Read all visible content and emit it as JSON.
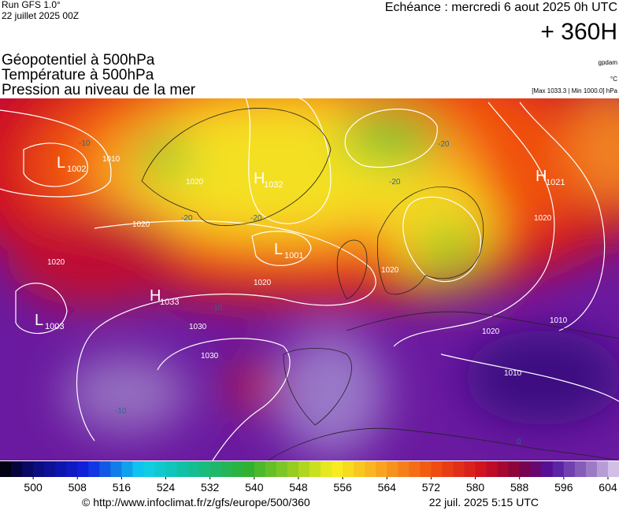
{
  "header": {
    "run": "Run GFS 1.0°",
    "run_date": "22 juillet 2025 00Z",
    "valid": "Echéance : mercredi 6 aout 2025 0h UTC",
    "lead": "+ 360H"
  },
  "layers": [
    "Géopotentiel à 500hPa",
    "Température à 500hPa",
    "Pression au niveau de la mer"
  ],
  "units": [
    "gpdam",
    "°C",
    "[Max 1033.3 | Min 1000.0] hPa"
  ],
  "pressure_centers": [
    {
      "letter": "L",
      "value": 1002
    },
    {
      "letter": "H",
      "value": 1032
    },
    {
      "letter": "H",
      "value": 1021
    },
    {
      "letter": "L",
      "value": 1001
    },
    {
      "letter": "L",
      "value": 1003
    },
    {
      "letter": "H",
      "value": 1033
    }
  ],
  "isobar_labels": [
    1010,
    1020,
    1020,
    1020,
    1030,
    1030,
    1020,
    1020,
    1010,
    1010,
    1020,
    1020
  ],
  "temperature_labels": [
    -10,
    -20,
    -20,
    -20,
    -20,
    -10,
    -10,
    0
  ],
  "colorbar": {
    "lim": [
      494,
      606
    ],
    "ticks": [
      500,
      508,
      516,
      524,
      532,
      540,
      548,
      556,
      564,
      572,
      580,
      588,
      596,
      604
    ]
  },
  "footer": {
    "source": "© http://www.infoclimat.fr/z/gfs/europe/500/360",
    "generated": "22 juil. 2025  5:15 UTC"
  }
}
